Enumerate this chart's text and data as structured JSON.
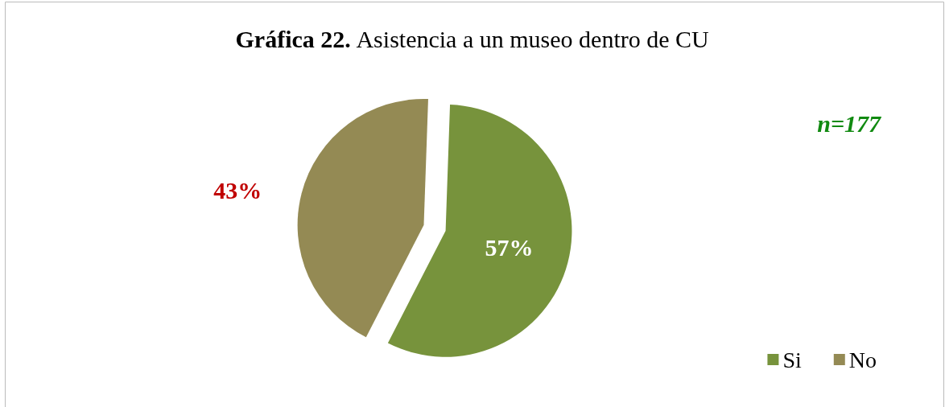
{
  "chart_data": {
    "type": "pie",
    "title": "Gráfica 22. Asistencia a un museo dentro de CU",
    "categories": [
      "Si",
      "No"
    ],
    "values": [
      57,
      43
    ],
    "colors": [
      "#77933c",
      "#948a54"
    ],
    "value_labels": [
      "57%",
      "43%"
    ],
    "legend": "bottom right",
    "annotations": [
      "n=177"
    ]
  }
}
